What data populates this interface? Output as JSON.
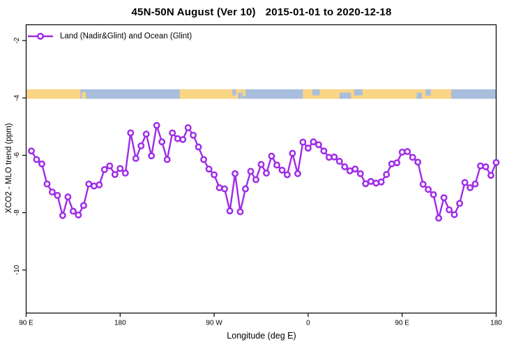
{
  "title": {
    "region_period": "45N-50N August (Ver 10)",
    "date_range": "2015-01-01 to 2020-12-18"
  },
  "legend": {
    "label": "Land (Nadir&Glint) and Ocean (Glint)"
  },
  "colors": {
    "series": "#9f2be8",
    "marker_fill": "#ffffff",
    "land": "#fad584",
    "ocean": "#a9bedc",
    "axis": "#000000"
  },
  "chart_data": {
    "type": "line",
    "title": "45N-50N August (Ver 10)  2015-01-01 to 2020-12-18",
    "xlabel": "Longitude (deg E)",
    "ylabel": "XCO2 - MLO trend (ppm)",
    "xlim": [
      90,
      540
    ],
    "ylim": [
      -11.5,
      -1.45
    ],
    "grid": "off",
    "legend_position": "top-left-inside",
    "x_ticks": [
      {
        "value": 90,
        "label": "90 E"
      },
      {
        "value": 180,
        "label": "180"
      },
      {
        "value": 270,
        "label": "90 W"
      },
      {
        "value": 360,
        "label": "0"
      },
      {
        "value": 450,
        "label": "90 E"
      },
      {
        "value": 540,
        "label": "180"
      }
    ],
    "y_ticks": [
      {
        "value": -2,
        "label": "-2"
      },
      {
        "value": -4,
        "label": "-4"
      },
      {
        "value": -6,
        "label": "-6"
      },
      {
        "value": -8,
        "label": "-8"
      },
      {
        "value": -10,
        "label": "-10"
      }
    ],
    "surface_band": {
      "description": "land(tan)/ocean(blue) strip along longitude",
      "value_top": -3.7,
      "value_bottom": -4.03,
      "land_segments": [
        [
          90,
          142
        ],
        [
          237,
          297
        ],
        [
          355,
          497
        ]
      ],
      "land_islands": [
        [
          143.5,
          147
        ],
        [
          297.5,
          300
        ]
      ],
      "water_patches": [
        [
          287.5,
          291
        ],
        [
          293,
          296.5
        ],
        [
          364,
          371
        ],
        [
          390,
          401
        ],
        [
          404,
          412
        ],
        [
          464,
          469
        ],
        [
          472.5,
          477.5
        ]
      ]
    },
    "series": [
      {
        "name": "Land (Nadir&Glint) and Ocean (Glint)",
        "marker": "open-circle",
        "x_start": 95,
        "x_step": 5,
        "values": [
          -5.85,
          -6.15,
          -6.3,
          -7.0,
          -7.28,
          -7.4,
          -8.1,
          -7.45,
          -7.95,
          -8.08,
          -7.75,
          -7.0,
          -7.07,
          -7.03,
          -6.5,
          -6.37,
          -6.67,
          -6.46,
          -6.62,
          -5.22,
          -6.11,
          -5.67,
          -5.26,
          -6.02,
          -4.96,
          -5.53,
          -6.15,
          -5.22,
          -5.42,
          -5.45,
          -5.04,
          -5.3,
          -5.71,
          -6.15,
          -6.48,
          -6.68,
          -7.13,
          -7.17,
          -7.94,
          -6.64,
          -7.97,
          -7.17,
          -6.56,
          -6.85,
          -6.32,
          -6.62,
          -6.03,
          -6.34,
          -6.52,
          -6.68,
          -5.93,
          -6.64,
          -5.54,
          -5.75,
          -5.53,
          -5.63,
          -5.85,
          -6.07,
          -6.06,
          -6.21,
          -6.4,
          -6.54,
          -6.48,
          -6.64,
          -6.99,
          -6.91,
          -6.97,
          -6.93,
          -6.67,
          -6.3,
          -6.26,
          -5.89,
          -5.87,
          -6.07,
          -6.24,
          -7.01,
          -7.19,
          -7.37,
          -8.19,
          -7.48,
          -7.9,
          -8.07,
          -7.68,
          -6.95,
          -7.13,
          -7.0,
          -6.37,
          -6.4,
          -6.7,
          -6.25
        ]
      }
    ]
  }
}
